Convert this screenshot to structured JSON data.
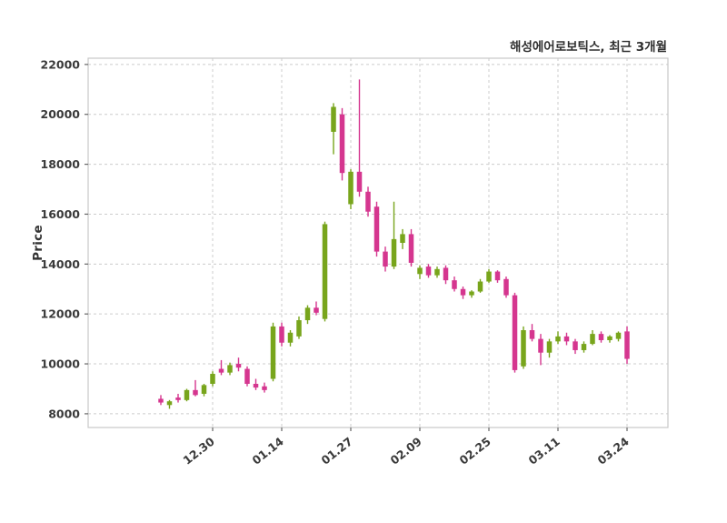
{
  "header": {
    "title": "해성에어로보틱스, 최근 3개월"
  },
  "chart_data": {
    "type": "candlestick",
    "title": "해성에어로보틱스, 최근 3개월",
    "ylabel": "Price",
    "ylim": [
      7450,
      22250
    ],
    "yticks": [
      8000,
      10000,
      12000,
      14000,
      16000,
      18000,
      20000,
      22000
    ],
    "xticks": [
      {
        "index": 6,
        "label": "12.30"
      },
      {
        "index": 14,
        "label": "01.14"
      },
      {
        "index": 22,
        "label": "01.27"
      },
      {
        "index": 30,
        "label": "02.09"
      },
      {
        "index": 38,
        "label": "02.25"
      },
      {
        "index": 46,
        "label": "03.11"
      },
      {
        "index": 54,
        "label": "03.24"
      }
    ],
    "grid": "dashed",
    "legend_position": "none",
    "colors": {
      "up": "#78a51c",
      "down": "#d5368f",
      "grid": "#cccccc",
      "spine": "#c8c8c8",
      "tick_text": "#3a3a3a"
    },
    "candle_format": [
      "open",
      "high",
      "low",
      "close"
    ],
    "candles": [
      [
        8600,
        8750,
        8350,
        8450
      ],
      [
        8350,
        8550,
        8200,
        8500
      ],
      [
        8650,
        8800,
        8450,
        8550
      ],
      [
        8550,
        9000,
        8500,
        8950
      ],
      [
        8950,
        9350,
        8700,
        8750
      ],
      [
        8800,
        9200,
        8700,
        9150
      ],
      [
        9200,
        9700,
        9100,
        9600
      ],
      [
        9800,
        10150,
        9550,
        9650
      ],
      [
        9650,
        10050,
        9550,
        9950
      ],
      [
        10000,
        10250,
        9700,
        9850
      ],
      [
        9800,
        9900,
        9100,
        9200
      ],
      [
        9200,
        9400,
        8950,
        9050
      ],
      [
        9100,
        9250,
        8850,
        8950
      ],
      [
        9400,
        11650,
        9300,
        11500
      ],
      [
        11500,
        11650,
        10700,
        10850
      ],
      [
        10850,
        11350,
        10700,
        11250
      ],
      [
        11100,
        11900,
        11000,
        11750
      ],
      [
        11750,
        12350,
        11600,
        12250
      ],
      [
        12250,
        12500,
        11950,
        12050
      ],
      [
        11800,
        15700,
        11700,
        15600
      ],
      [
        19300,
        20450,
        18400,
        20300
      ],
      [
        20000,
        20250,
        17350,
        17650
      ],
      [
        16400,
        17800,
        16200,
        17700
      ],
      [
        17700,
        21400,
        16700,
        16900
      ],
      [
        16900,
        17100,
        15900,
        16100
      ],
      [
        16300,
        16500,
        14300,
        14500
      ],
      [
        14500,
        14700,
        13700,
        13900
      ],
      [
        13900,
        16500,
        13800,
        15000
      ],
      [
        14850,
        15400,
        14600,
        15200
      ],
      [
        15200,
        15400,
        13900,
        14050
      ],
      [
        13600,
        13950,
        13400,
        13850
      ],
      [
        13900,
        14000,
        13450,
        13550
      ],
      [
        13550,
        13900,
        13450,
        13800
      ],
      [
        13850,
        13950,
        13200,
        13350
      ],
      [
        13350,
        13500,
        12900,
        13000
      ],
      [
        13000,
        13100,
        12600,
        12750
      ],
      [
        12750,
        12950,
        12650,
        12900
      ],
      [
        12900,
        13400,
        12850,
        13300
      ],
      [
        13300,
        13800,
        13250,
        13700
      ],
      [
        13700,
        13750,
        13250,
        13350
      ],
      [
        13400,
        13500,
        12650,
        12750
      ],
      [
        12750,
        12850,
        9650,
        9750
      ],
      [
        9900,
        11500,
        9800,
        11350
      ],
      [
        11350,
        11600,
        10900,
        11000
      ],
      [
        11000,
        11200,
        9950,
        10450
      ],
      [
        10450,
        11000,
        10250,
        10900
      ],
      [
        10900,
        11300,
        10800,
        11100
      ],
      [
        11100,
        11250,
        10750,
        10900
      ],
      [
        10900,
        11000,
        10400,
        10550
      ],
      [
        10550,
        10900,
        10450,
        10800
      ],
      [
        10800,
        11350,
        10750,
        11200
      ],
      [
        11200,
        11300,
        10850,
        10950
      ],
      [
        10950,
        11150,
        10850,
        11100
      ],
      [
        11000,
        11300,
        10900,
        11250
      ],
      [
        11300,
        11500,
        10000,
        10200
      ]
    ]
  }
}
